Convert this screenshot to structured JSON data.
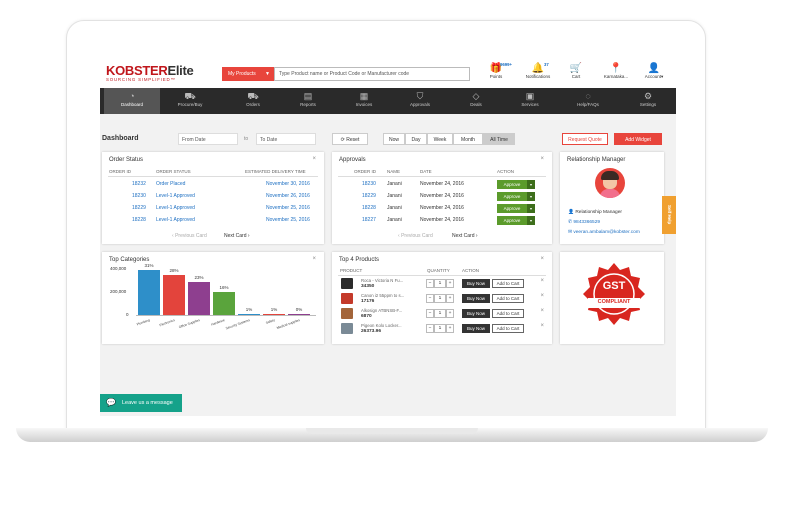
{
  "logo": {
    "brand_a": "KOBSTER",
    "brand_b": "Elite",
    "tagline": "SOURCING SIMPLIFIED™"
  },
  "header": {
    "my_products": "My Products",
    "search_placeholder": "Type Product name or Product Code or Manufacturer code",
    "icons": [
      {
        "label": "Points",
        "badge": "9699+",
        "icon": "gift-icon"
      },
      {
        "label": "Notifications",
        "badge": "37",
        "icon": "bell-icon"
      },
      {
        "label": "Cart",
        "badge": "",
        "icon": "cart-icon"
      },
      {
        "label": "Karnataka...",
        "badge": "",
        "icon": "location-icon"
      },
      {
        "label": "Account▾",
        "badge": "",
        "icon": "user-icon"
      }
    ]
  },
  "nav": [
    {
      "label": "Dashboard",
      "icon": "speedometer-icon",
      "active": true
    },
    {
      "label": "Procure/Buy",
      "icon": "procure-cart-icon"
    },
    {
      "label": "Orders",
      "icon": "orders-cart-icon"
    },
    {
      "label": "Reports",
      "icon": "report-icon"
    },
    {
      "label": "Invoices",
      "icon": "invoice-icon"
    },
    {
      "label": "Approvals",
      "icon": "shield-icon"
    },
    {
      "label": "Deals",
      "icon": "tag-icon"
    },
    {
      "label": "Services",
      "icon": "briefcase-icon"
    },
    {
      "label": "Help/FAQs",
      "icon": "help-icon"
    },
    {
      "label": "Settings",
      "icon": "gear-icon"
    }
  ],
  "toolbar": {
    "title": "Dashboard",
    "from_date": "From Date",
    "to_label": "to",
    "to_date": "To Date",
    "reset": "Reset",
    "ranges": [
      "Now",
      "Day",
      "Week",
      "Month",
      "All Time"
    ],
    "active_range": "All Time",
    "request_quote": "Request Quote",
    "add_widget": "Add Widget"
  },
  "order_status": {
    "title": "Order Status",
    "columns": [
      "ORDER ID",
      "ORDER STATUS",
      "ESTIMATED DELIVERY TIME"
    ],
    "rows": [
      {
        "id": "18232",
        "status": "Order Placed",
        "eta": "November 30, 2016"
      },
      {
        "id": "18230",
        "status": "Level-1 Approved",
        "eta": "November 26, 2016"
      },
      {
        "id": "18229",
        "status": "Level-1 Approved",
        "eta": "November 25, 2016"
      },
      {
        "id": "18228",
        "status": "Level-1 Approved",
        "eta": "November 25, 2016"
      }
    ],
    "prev": "Previous Card",
    "next": "Next Card"
  },
  "approvals": {
    "title": "Approvals",
    "columns": [
      "ORDER ID",
      "NAME",
      "DATE",
      "ACTION"
    ],
    "rows": [
      {
        "id": "18230",
        "name": "Janani",
        "date": "November 24, 2016"
      },
      {
        "id": "18229",
        "name": "Janani",
        "date": "November 24, 2016"
      },
      {
        "id": "18228",
        "name": "Janani",
        "date": "November 24, 2016"
      },
      {
        "id": "18227",
        "name": "Janani",
        "date": "November 24, 2016"
      }
    ],
    "approve_label": "Approve",
    "prev": "Previous Card",
    "next": "Next Card"
  },
  "relationship": {
    "title": "Relationship Manager",
    "name": "Relationship Manager",
    "phone": "9843366529",
    "email": "veeran.ambalam@kobster.com"
  },
  "top_categories": {
    "title": "Top Categories",
    "y_ticks": [
      "400,000",
      "200,000",
      "0"
    ]
  },
  "chart_data": {
    "type": "bar",
    "title": "Top Categories",
    "categories": [
      "Plumbing",
      "Electronics",
      "Office Supplies",
      "Hardware",
      "Security Systems",
      "Safety",
      "Medical supplies"
    ],
    "values": [
      31,
      28,
      23,
      16,
      1,
      1,
      0
    ],
    "value_labels": [
      "31%",
      "28%",
      "23%",
      "16%",
      "1%",
      "1%",
      "0%"
    ],
    "colors": [
      "#2e8fc9",
      "#e3443c",
      "#8e3f8f",
      "#5aa43c",
      "#2e8fc9",
      "#e3443c",
      "#8e3f8f"
    ],
    "ylim": [
      0,
      400000
    ],
    "y_ticks": [
      0,
      200000,
      400000
    ]
  },
  "top_products": {
    "title": "Top 4 Products",
    "columns": [
      "PRODUCT",
      "QUANTITY",
      "ACTION"
    ],
    "rows": [
      {
        "name": "Roca - Victoria N Fu...",
        "price": "34350",
        "qty": "1",
        "color": "#2b2b2b"
      },
      {
        "name": "Canon i2 55ppm to s...",
        "price": "17176",
        "qty": "1",
        "color": "#c43a2a"
      },
      {
        "name": "Alkosign ATBNSB-F...",
        "price": "6870",
        "qty": "1",
        "color": "#a3653a"
      },
      {
        "name": "Pigeon Kolo Locker...",
        "price": "26373.96",
        "qty": "1",
        "color": "#7a8a96"
      }
    ],
    "buy_now": "Buy Now",
    "add_to_cart": "Add to Cart"
  },
  "gst": {
    "line1": "GST",
    "line2": "COMPLIANT"
  },
  "self_help": "Self Help",
  "leave_message": "Leave us a message"
}
